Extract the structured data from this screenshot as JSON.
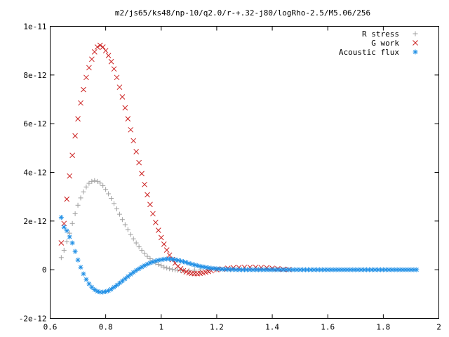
{
  "chart_data": {
    "type": "scatter",
    "title": "m2/js65/ks48/np-10/q2.0/r-+.32-j80/logRho-2.5/M5.06/256",
    "xlabel": "",
    "ylabel": "",
    "xlim": [
      0.6,
      2.0
    ],
    "ylim": [
      -2e-12,
      1e-11
    ],
    "x_ticks": [
      0.6,
      0.8,
      1.0,
      1.2,
      1.4,
      1.6,
      1.8,
      2.0
    ],
    "x_tick_labels": [
      "0.6",
      "0.8",
      "1",
      "1.2",
      "1.4",
      "1.6",
      "1.8",
      "2"
    ],
    "y_ticks": [
      -2e-12,
      0,
      2e-12,
      4e-12,
      6e-12,
      8e-12,
      1e-11
    ],
    "y_tick_labels": [
      "-2e-12",
      "0",
      "2e-12",
      "4e-12",
      "6e-12",
      "8e-12",
      "1e-11"
    ],
    "grid": false,
    "legend_position": "top-right",
    "series": [
      {
        "name": "R stress",
        "marker": "plus",
        "color": "#a0a0a0",
        "points": [
          [
            0.64,
            5e-13
          ],
          [
            0.65,
            8e-13
          ],
          [
            0.66,
            1.15e-12
          ],
          [
            0.67,
            1.5e-12
          ],
          [
            0.68,
            1.9e-12
          ],
          [
            0.69,
            2.3e-12
          ],
          [
            0.7,
            2.65e-12
          ],
          [
            0.71,
            2.95e-12
          ],
          [
            0.72,
            3.2e-12
          ],
          [
            0.73,
            3.4e-12
          ],
          [
            0.74,
            3.55e-12
          ],
          [
            0.75,
            3.63e-12
          ],
          [
            0.76,
            3.66e-12
          ],
          [
            0.77,
            3.63e-12
          ],
          [
            0.78,
            3.56e-12
          ],
          [
            0.79,
            3.45e-12
          ],
          [
            0.8,
            3.3e-12
          ],
          [
            0.81,
            3.12e-12
          ],
          [
            0.82,
            2.93e-12
          ],
          [
            0.83,
            2.72e-12
          ],
          [
            0.84,
            2.5e-12
          ],
          [
            0.85,
            2.28e-12
          ],
          [
            0.86,
            2.06e-12
          ],
          [
            0.87,
            1.85e-12
          ],
          [
            0.88,
            1.65e-12
          ],
          [
            0.89,
            1.45e-12
          ],
          [
            0.9,
            1.27e-12
          ],
          [
            0.91,
            1.1e-12
          ],
          [
            0.92,
            9.4e-13
          ],
          [
            0.93,
            8e-13
          ],
          [
            0.94,
            6.7e-13
          ],
          [
            0.95,
            5.5e-13
          ],
          [
            0.96,
            4.5e-13
          ],
          [
            0.97,
            3.6e-13
          ],
          [
            0.98,
            2.8e-13
          ],
          [
            0.99,
            2.2e-13
          ],
          [
            1.0,
            1.6e-13
          ],
          [
            1.01,
            1.1e-13
          ],
          [
            1.02,
            7e-14
          ],
          [
            1.03,
            4e-14
          ],
          [
            1.04,
            1e-14
          ],
          [
            1.05,
            -1e-14
          ],
          [
            1.06,
            -2e-14
          ],
          [
            1.07,
            -3e-14
          ],
          [
            1.08,
            -3e-14
          ],
          [
            1.1,
            -3e-14
          ],
          [
            1.12,
            -2e-14
          ],
          [
            1.14,
            -1e-14
          ],
          [
            1.17,
            0
          ],
          [
            1.2,
            0
          ],
          [
            1.25,
            0
          ],
          [
            1.3,
            0
          ],
          [
            1.35,
            0
          ],
          [
            1.4,
            0
          ],
          [
            1.45,
            0
          ]
        ]
      },
      {
        "name": "G work",
        "marker": "cross",
        "color": "#cc2222",
        "points": [
          [
            0.64,
            1.1e-12
          ],
          [
            0.65,
            1.9e-12
          ],
          [
            0.66,
            2.9e-12
          ],
          [
            0.67,
            3.85e-12
          ],
          [
            0.68,
            4.7e-12
          ],
          [
            0.69,
            5.5e-12
          ],
          [
            0.7,
            6.2e-12
          ],
          [
            0.71,
            6.85e-12
          ],
          [
            0.72,
            7.4e-12
          ],
          [
            0.73,
            7.9e-12
          ],
          [
            0.74,
            8.3e-12
          ],
          [
            0.75,
            8.65e-12
          ],
          [
            0.76,
            8.95e-12
          ],
          [
            0.77,
            9.15e-12
          ],
          [
            0.78,
            9.22e-12
          ],
          [
            0.79,
            9.15e-12
          ],
          [
            0.8,
            9e-12
          ],
          [
            0.81,
            8.8e-12
          ],
          [
            0.82,
            8.55e-12
          ],
          [
            0.83,
            8.25e-12
          ],
          [
            0.84,
            7.9e-12
          ],
          [
            0.85,
            7.5e-12
          ],
          [
            0.86,
            7.1e-12
          ],
          [
            0.87,
            6.65e-12
          ],
          [
            0.88,
            6.2e-12
          ],
          [
            0.89,
            5.75e-12
          ],
          [
            0.9,
            5.3e-12
          ],
          [
            0.91,
            4.85e-12
          ],
          [
            0.92,
            4.4e-12
          ],
          [
            0.93,
            3.95e-12
          ],
          [
            0.94,
            3.5e-12
          ],
          [
            0.95,
            3.08e-12
          ],
          [
            0.96,
            2.68e-12
          ],
          [
            0.97,
            2.3e-12
          ],
          [
            0.98,
            1.94e-12
          ],
          [
            0.99,
            1.62e-12
          ],
          [
            1.0,
            1.32e-12
          ],
          [
            1.01,
            1.05e-12
          ],
          [
            1.02,
            8.1e-13
          ],
          [
            1.03,
            6e-13
          ],
          [
            1.04,
            4.2e-13
          ],
          [
            1.05,
            2.7e-13
          ],
          [
            1.06,
            1.4e-13
          ],
          [
            1.07,
            4e-14
          ],
          [
            1.08,
            -4e-14
          ],
          [
            1.09,
            -9e-14
          ],
          [
            1.1,
            -1.3e-13
          ],
          [
            1.11,
            -1.5e-13
          ],
          [
            1.12,
            -1.6e-13
          ],
          [
            1.13,
            -1.6e-13
          ],
          [
            1.14,
            -1.5e-13
          ],
          [
            1.15,
            -1.3e-13
          ],
          [
            1.16,
            -1e-13
          ],
          [
            1.17,
            -7e-14
          ],
          [
            1.18,
            -4e-14
          ],
          [
            1.2,
            0
          ],
          [
            1.22,
            3e-14
          ],
          [
            1.24,
            6e-14
          ],
          [
            1.26,
            8e-14
          ],
          [
            1.28,
            9e-14
          ],
          [
            1.3,
            1e-13
          ],
          [
            1.32,
            1e-13
          ],
          [
            1.34,
            1e-13
          ],
          [
            1.36,
            9e-14
          ],
          [
            1.38,
            8e-14
          ],
          [
            1.4,
            6e-14
          ],
          [
            1.42,
            4e-14
          ],
          [
            1.44,
            2e-14
          ],
          [
            1.46,
            1e-14
          ]
        ]
      },
      {
        "name": "Acoustic flux",
        "marker": "star",
        "color": "#1f8fe6",
        "points": [
          [
            0.64,
            2.15e-12
          ],
          [
            0.65,
            1.75e-12
          ],
          [
            0.66,
            1.6e-12
          ],
          [
            0.67,
            1.35e-12
          ],
          [
            0.68,
            1.1e-12
          ],
          [
            0.69,
            7.5e-13
          ],
          [
            0.7,
            4e-13
          ],
          [
            0.71,
            1e-13
          ],
          [
            0.72,
            -1.7e-13
          ],
          [
            0.73,
            -4e-13
          ],
          [
            0.74,
            -5.8e-13
          ],
          [
            0.75,
            -7.2e-13
          ],
          [
            0.76,
            -8.2e-13
          ],
          [
            0.77,
            -8.9e-13
          ],
          [
            0.78,
            -9.2e-13
          ],
          [
            0.79,
            -9.2e-13
          ],
          [
            0.8,
            -9e-13
          ],
          [
            0.81,
            -8.6e-13
          ],
          [
            0.82,
            -8e-13
          ],
          [
            0.83,
            -7.2e-13
          ],
          [
            0.84,
            -6.4e-13
          ],
          [
            0.85,
            -5.5e-13
          ],
          [
            0.86,
            -4.6e-13
          ],
          [
            0.87,
            -3.7e-13
          ],
          [
            0.88,
            -2.8e-13
          ],
          [
            0.89,
            -1.9e-13
          ],
          [
            0.9,
            -1.1e-13
          ],
          [
            0.91,
            -3e-14
          ],
          [
            0.92,
            4e-14
          ],
          [
            0.93,
            1.1e-13
          ],
          [
            0.94,
            1.7e-13
          ],
          [
            0.95,
            2.3e-13
          ],
          [
            0.96,
            2.8e-13
          ],
          [
            0.97,
            3.2e-13
          ],
          [
            0.98,
            3.6e-13
          ],
          [
            0.99,
            3.9e-13
          ],
          [
            1.0,
            4.1e-13
          ],
          [
            1.01,
            4.3e-13
          ],
          [
            1.02,
            4.4e-13
          ],
          [
            1.03,
            4.4e-13
          ],
          [
            1.04,
            4.3e-13
          ],
          [
            1.05,
            4.1e-13
          ],
          [
            1.06,
            3.9e-13
          ],
          [
            1.07,
            3.6e-13
          ],
          [
            1.08,
            3.3e-13
          ],
          [
            1.09,
            3e-13
          ],
          [
            1.1,
            2.6e-13
          ],
          [
            1.11,
            2.3e-13
          ],
          [
            1.12,
            2e-13
          ],
          [
            1.13,
            1.7e-13
          ],
          [
            1.14,
            1.4e-13
          ],
          [
            1.15,
            1.2e-13
          ],
          [
            1.16,
            1e-13
          ],
          [
            1.17,
            8e-14
          ],
          [
            1.18,
            6e-14
          ],
          [
            1.19,
            5e-14
          ],
          [
            1.2,
            4e-14
          ],
          [
            1.21,
            3e-14
          ],
          [
            1.22,
            2e-14
          ],
          [
            1.23,
            2e-14
          ],
          [
            1.24,
            1e-14
          ],
          [
            1.25,
            1e-14
          ],
          [
            1.26,
            1e-14
          ],
          [
            1.27,
            0
          ],
          [
            1.28,
            0
          ],
          [
            1.29,
            0
          ],
          [
            1.3,
            0
          ],
          [
            1.31,
            0
          ],
          [
            1.32,
            0
          ],
          [
            1.33,
            0
          ],
          [
            1.34,
            0
          ],
          [
            1.35,
            0
          ],
          [
            1.36,
            0
          ],
          [
            1.37,
            0
          ],
          [
            1.38,
            0
          ],
          [
            1.39,
            0
          ],
          [
            1.4,
            0
          ],
          [
            1.41,
            0
          ],
          [
            1.42,
            0
          ],
          [
            1.43,
            0
          ],
          [
            1.44,
            0
          ],
          [
            1.45,
            0
          ],
          [
            1.46,
            0
          ],
          [
            1.47,
            0
          ],
          [
            1.48,
            0
          ],
          [
            1.49,
            0
          ],
          [
            1.5,
            0
          ],
          [
            1.51,
            0
          ],
          [
            1.52,
            0
          ],
          [
            1.53,
            0
          ],
          [
            1.54,
            0
          ],
          [
            1.55,
            0
          ],
          [
            1.56,
            0
          ],
          [
            1.57,
            0
          ],
          [
            1.58,
            0
          ],
          [
            1.59,
            0
          ],
          [
            1.6,
            0
          ],
          [
            1.61,
            0
          ],
          [
            1.62,
            0
          ],
          [
            1.63,
            0
          ],
          [
            1.64,
            0
          ],
          [
            1.65,
            0
          ],
          [
            1.66,
            0
          ],
          [
            1.67,
            0
          ],
          [
            1.68,
            0
          ],
          [
            1.69,
            0
          ],
          [
            1.7,
            0
          ],
          [
            1.71,
            0
          ],
          [
            1.72,
            0
          ],
          [
            1.73,
            0
          ],
          [
            1.74,
            0
          ],
          [
            1.75,
            0
          ],
          [
            1.76,
            0
          ],
          [
            1.77,
            0
          ],
          [
            1.78,
            0
          ],
          [
            1.79,
            0
          ],
          [
            1.8,
            0
          ],
          [
            1.81,
            0
          ],
          [
            1.82,
            0
          ],
          [
            1.83,
            0
          ],
          [
            1.84,
            0
          ],
          [
            1.85,
            0
          ],
          [
            1.86,
            0
          ],
          [
            1.87,
            0
          ],
          [
            1.88,
            0
          ],
          [
            1.89,
            0
          ],
          [
            1.9,
            0
          ],
          [
            1.91,
            0
          ],
          [
            1.92,
            0
          ]
        ]
      }
    ]
  }
}
